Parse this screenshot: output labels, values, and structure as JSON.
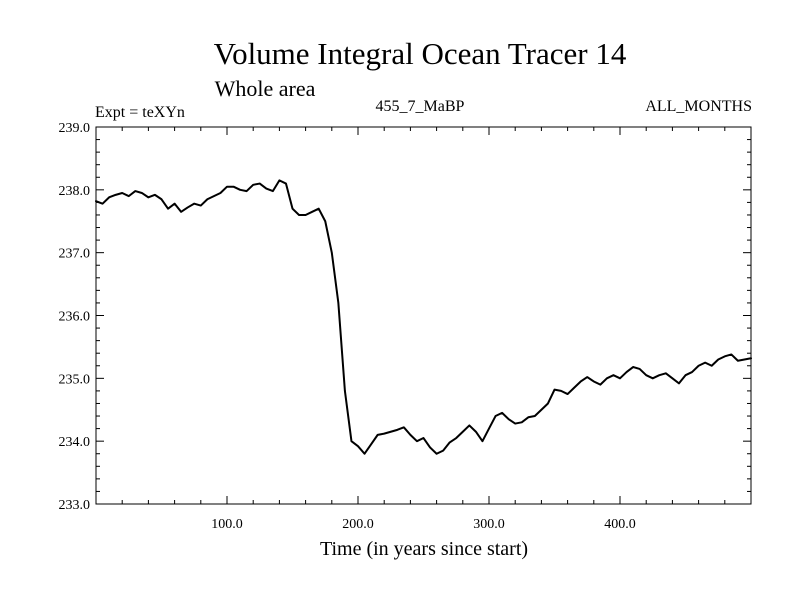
{
  "header": {
    "title": "Volume Integral Ocean Tracer 14",
    "subtitle": "Whole area",
    "expt_label": "Expt = teXYn",
    "run_label": "455_7_MaBP",
    "months_label": "ALL_MONTHS"
  },
  "chart_data": {
    "type": "line",
    "title": "Volume Integral Ocean Tracer 14",
    "subtitle": "Whole area",
    "xlabel": "Time (in years since start)",
    "ylabel": "",
    "xlim": [
      0,
      500
    ],
    "ylim": [
      233.0,
      239.0
    ],
    "x_ticks": [
      100,
      200,
      300,
      400
    ],
    "x_tick_labels": [
      "100.0",
      "200.0",
      "300.0",
      "400.0"
    ],
    "y_ticks": [
      233,
      234,
      235,
      236,
      237,
      238,
      239
    ],
    "y_tick_labels": [
      "233.0",
      "234.0",
      "235.0",
      "236.0",
      "237.0",
      "238.0",
      "239.0"
    ],
    "grid": false,
    "line_color": "#000000",
    "x": [
      0,
      5,
      10,
      15,
      20,
      25,
      30,
      35,
      40,
      45,
      50,
      55,
      60,
      65,
      70,
      75,
      80,
      85,
      90,
      95,
      100,
      105,
      110,
      115,
      120,
      125,
      130,
      135,
      140,
      145,
      150,
      155,
      160,
      165,
      170,
      175,
      180,
      185,
      190,
      195,
      200,
      205,
      210,
      215,
      220,
      225,
      230,
      235,
      240,
      245,
      250,
      255,
      260,
      265,
      270,
      275,
      280,
      285,
      290,
      295,
      300,
      305,
      310,
      315,
      320,
      325,
      330,
      335,
      340,
      345,
      350,
      355,
      360,
      365,
      370,
      375,
      380,
      385,
      390,
      395,
      400,
      405,
      410,
      415,
      420,
      425,
      430,
      435,
      440,
      445,
      450,
      455,
      460,
      465,
      470,
      475,
      480,
      485,
      490,
      495,
      500
    ],
    "y": [
      237.82,
      237.78,
      237.88,
      237.92,
      237.95,
      237.9,
      237.98,
      237.95,
      237.88,
      237.92,
      237.85,
      237.7,
      237.78,
      237.65,
      237.72,
      237.78,
      237.75,
      237.85,
      237.9,
      237.95,
      238.05,
      238.05,
      238.0,
      237.98,
      238.08,
      238.1,
      238.02,
      237.98,
      238.15,
      238.1,
      237.7,
      237.6,
      237.6,
      237.65,
      237.7,
      237.5,
      237.0,
      236.2,
      234.8,
      234.0,
      233.92,
      233.8,
      233.95,
      234.1,
      234.12,
      234.15,
      234.18,
      234.22,
      234.1,
      234.0,
      234.05,
      233.9,
      233.8,
      233.85,
      233.98,
      234.05,
      234.15,
      234.25,
      234.15,
      234.0,
      234.2,
      234.4,
      234.45,
      234.35,
      234.28,
      234.3,
      234.38,
      234.4,
      234.5,
      234.6,
      234.82,
      234.8,
      234.75,
      234.85,
      234.95,
      235.02,
      234.95,
      234.9,
      235.0,
      235.05,
      235.0,
      235.1,
      235.18,
      235.15,
      235.05,
      235.0,
      235.05,
      235.08,
      235.0,
      234.92,
      235.05,
      235.1,
      235.2,
      235.25,
      235.2,
      235.3,
      235.35,
      235.38,
      235.28,
      235.3,
      235.32
    ]
  }
}
